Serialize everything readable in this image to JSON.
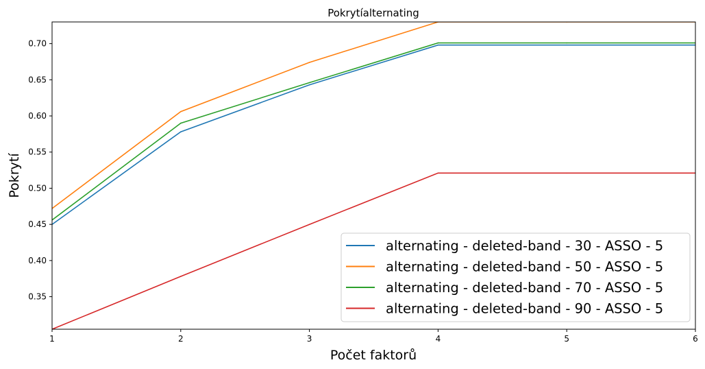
{
  "chart_data": {
    "type": "line",
    "title": "Pokrytíalternating",
    "xlabel": "Počet faktorů",
    "ylabel": "Pokrytí",
    "xlim": [
      1,
      6
    ],
    "ylim": [
      0.305,
      0.73
    ],
    "x_ticks": [
      1,
      2,
      3,
      4,
      5,
      6
    ],
    "y_ticks": [
      0.35,
      0.4,
      0.45,
      0.5,
      0.55,
      0.6,
      0.65,
      0.7
    ],
    "x": [
      1,
      2,
      3,
      4,
      5,
      6
    ],
    "grid": false,
    "legend_position": "lower-right",
    "series": [
      {
        "name": "alternating - deleted-band - 30 - ASSO - 5",
        "color": "#1f77b4",
        "values": [
          0.45,
          0.578,
          0.643,
          0.698,
          0.698,
          0.698
        ]
      },
      {
        "name": "alternating - deleted-band - 50 - ASSO - 5",
        "color": "#ff7f0e",
        "values": [
          0.472,
          0.606,
          0.674,
          0.73,
          0.73,
          0.73
        ]
      },
      {
        "name": "alternating - deleted-band - 70 - ASSO - 5",
        "color": "#2ca02c",
        "values": [
          0.456,
          0.59,
          0.646,
          0.701,
          0.701,
          0.701
        ]
      },
      {
        "name": "alternating - deleted-band - 90 - ASSO - 5",
        "color": "#d62728",
        "values": [
          0.305,
          0.378,
          0.45,
          0.521,
          0.521,
          0.521
        ]
      }
    ]
  }
}
